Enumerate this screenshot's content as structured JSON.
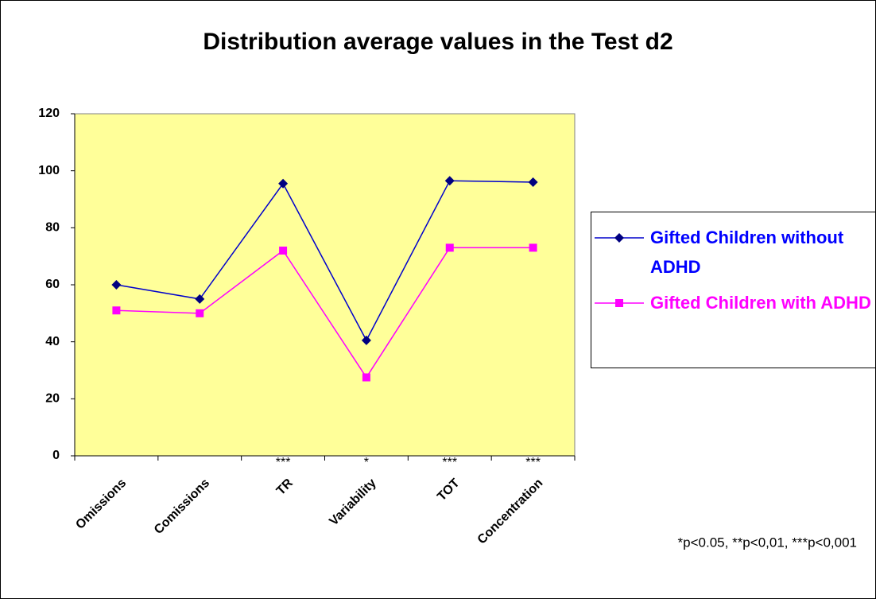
{
  "chart_data": {
    "type": "line",
    "title": "Distribution average values in the Test d2",
    "categories": [
      "Omissions",
      "Comissions",
      "TR",
      "Variability",
      "TOT",
      "Concentration"
    ],
    "series": [
      {
        "name": "Gifted Children without ADHD",
        "color": "#000080",
        "marker": "diamond",
        "values": [
          60,
          55,
          95.5,
          40.5,
          96.5,
          96
        ]
      },
      {
        "name": "Gifted Children with ADHD",
        "color": "#ff00ff",
        "marker": "square",
        "values": [
          51,
          50,
          72,
          27.5,
          73,
          73
        ]
      }
    ],
    "significance": [
      null,
      null,
      "***",
      "*",
      "***",
      "***"
    ],
    "footnote": "*p<0.05, **p<0,01, ***p<0,001",
    "ylim": [
      0,
      120
    ],
    "yticks": [
      0,
      20,
      40,
      60,
      80,
      100,
      120
    ],
    "plot_background": "#ffff99",
    "legend_position": "right"
  }
}
